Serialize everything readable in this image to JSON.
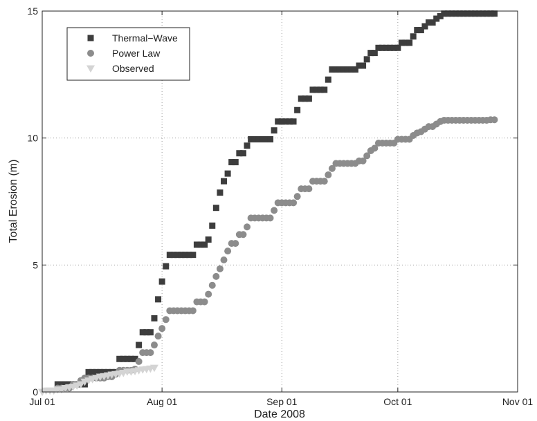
{
  "chart_data": {
    "type": "scatter",
    "xlabel": "Date 2008",
    "ylabel": "Total Erosion (m)",
    "x_start": "2008-07-01",
    "x_end": "2008-11-01",
    "ylim": [
      0,
      15
    ],
    "x_ticks": [
      {
        "date": "2008-07-01",
        "label": "Jul 01"
      },
      {
        "date": "2008-08-01",
        "label": "Aug 01"
      },
      {
        "date": "2008-09-01",
        "label": "Sep 01"
      },
      {
        "date": "2008-10-01",
        "label": "Oct 01"
      },
      {
        "date": "2008-11-01",
        "label": "Nov 01"
      }
    ],
    "y_ticks": [
      0,
      5,
      10,
      15
    ],
    "grid": true,
    "legend_position": "top-left",
    "series": [
      {
        "name": "Thermal−Wave",
        "marker": "square",
        "color": "#3d3d3d",
        "points": [
          [
            "2008-07-05",
            0.3
          ],
          [
            "2008-07-06",
            0.3
          ],
          [
            "2008-07-07",
            0.3
          ],
          [
            "2008-07-08",
            0.3
          ],
          [
            "2008-07-09",
            0.3
          ],
          [
            "2008-07-10",
            0.3
          ],
          [
            "2008-07-11",
            0.3
          ],
          [
            "2008-07-12",
            0.3
          ],
          [
            "2008-07-13",
            0.78
          ],
          [
            "2008-07-14",
            0.78
          ],
          [
            "2008-07-15",
            0.78
          ],
          [
            "2008-07-16",
            0.78
          ],
          [
            "2008-07-17",
            0.78
          ],
          [
            "2008-07-18",
            0.78
          ],
          [
            "2008-07-19",
            0.78
          ],
          [
            "2008-07-20",
            0.78
          ],
          [
            "2008-07-21",
            1.3
          ],
          [
            "2008-07-22",
            1.3
          ],
          [
            "2008-07-23",
            1.3
          ],
          [
            "2008-07-24",
            1.3
          ],
          [
            "2008-07-25",
            1.3
          ],
          [
            "2008-07-26",
            1.85
          ],
          [
            "2008-07-27",
            2.35
          ],
          [
            "2008-07-28",
            2.35
          ],
          [
            "2008-07-29",
            2.35
          ],
          [
            "2008-07-30",
            2.9
          ],
          [
            "2008-07-31",
            3.65
          ],
          [
            "2008-08-01",
            4.35
          ],
          [
            "2008-08-02",
            4.95
          ],
          [
            "2008-08-03",
            5.4
          ],
          [
            "2008-08-04",
            5.4
          ],
          [
            "2008-08-05",
            5.4
          ],
          [
            "2008-08-06",
            5.4
          ],
          [
            "2008-08-07",
            5.4
          ],
          [
            "2008-08-08",
            5.4
          ],
          [
            "2008-08-09",
            5.4
          ],
          [
            "2008-08-10",
            5.8
          ],
          [
            "2008-08-11",
            5.8
          ],
          [
            "2008-08-12",
            5.8
          ],
          [
            "2008-08-13",
            6.0
          ],
          [
            "2008-08-14",
            6.55
          ],
          [
            "2008-08-15",
            7.25
          ],
          [
            "2008-08-16",
            7.85
          ],
          [
            "2008-08-17",
            8.3
          ],
          [
            "2008-08-18",
            8.6
          ],
          [
            "2008-08-19",
            9.05
          ],
          [
            "2008-08-20",
            9.05
          ],
          [
            "2008-08-21",
            9.4
          ],
          [
            "2008-08-22",
            9.4
          ],
          [
            "2008-08-23",
            9.7
          ],
          [
            "2008-08-24",
            9.95
          ],
          [
            "2008-08-25",
            9.95
          ],
          [
            "2008-08-26",
            9.95
          ],
          [
            "2008-08-27",
            9.95
          ],
          [
            "2008-08-28",
            9.95
          ],
          [
            "2008-08-29",
            9.95
          ],
          [
            "2008-08-30",
            10.3
          ],
          [
            "2008-08-31",
            10.65
          ],
          [
            "2008-09-01",
            10.65
          ],
          [
            "2008-09-02",
            10.65
          ],
          [
            "2008-09-03",
            10.65
          ],
          [
            "2008-09-04",
            10.65
          ],
          [
            "2008-09-05",
            11.1
          ],
          [
            "2008-09-06",
            11.55
          ],
          [
            "2008-09-07",
            11.55
          ],
          [
            "2008-09-08",
            11.55
          ],
          [
            "2008-09-09",
            11.9
          ],
          [
            "2008-09-10",
            11.9
          ],
          [
            "2008-09-11",
            11.9
          ],
          [
            "2008-09-12",
            11.9
          ],
          [
            "2008-09-13",
            12.3
          ],
          [
            "2008-09-14",
            12.7
          ],
          [
            "2008-09-15",
            12.7
          ],
          [
            "2008-09-16",
            12.7
          ],
          [
            "2008-09-17",
            12.7
          ],
          [
            "2008-09-18",
            12.7
          ],
          [
            "2008-09-19",
            12.7
          ],
          [
            "2008-09-20",
            12.7
          ],
          [
            "2008-09-21",
            12.85
          ],
          [
            "2008-09-22",
            12.85
          ],
          [
            "2008-09-23",
            13.1
          ],
          [
            "2008-09-24",
            13.35
          ],
          [
            "2008-09-25",
            13.35
          ],
          [
            "2008-09-26",
            13.55
          ],
          [
            "2008-09-27",
            13.55
          ],
          [
            "2008-09-28",
            13.55
          ],
          [
            "2008-09-29",
            13.55
          ],
          [
            "2008-09-30",
            13.55
          ],
          [
            "2008-10-01",
            13.55
          ],
          [
            "2008-10-02",
            13.75
          ],
          [
            "2008-10-03",
            13.75
          ],
          [
            "2008-10-04",
            13.75
          ],
          [
            "2008-10-05",
            14.0
          ],
          [
            "2008-10-06",
            14.25
          ],
          [
            "2008-10-07",
            14.25
          ],
          [
            "2008-10-08",
            14.4
          ],
          [
            "2008-10-09",
            14.55
          ],
          [
            "2008-10-10",
            14.55
          ],
          [
            "2008-10-11",
            14.7
          ],
          [
            "2008-10-12",
            14.8
          ],
          [
            "2008-10-13",
            14.9
          ],
          [
            "2008-10-14",
            14.9
          ],
          [
            "2008-10-15",
            14.9
          ],
          [
            "2008-10-16",
            14.9
          ],
          [
            "2008-10-17",
            14.9
          ],
          [
            "2008-10-18",
            14.9
          ],
          [
            "2008-10-19",
            14.9
          ],
          [
            "2008-10-20",
            14.9
          ],
          [
            "2008-10-21",
            14.9
          ],
          [
            "2008-10-22",
            14.9
          ],
          [
            "2008-10-23",
            14.9
          ],
          [
            "2008-10-24",
            14.9
          ],
          [
            "2008-10-25",
            14.9
          ],
          [
            "2008-10-26",
            14.9
          ]
        ]
      },
      {
        "name": "Power Law",
        "marker": "circle",
        "color": "#8c8c8c",
        "points": [
          [
            "2008-07-05",
            0.15
          ],
          [
            "2008-07-06",
            0.15
          ],
          [
            "2008-07-07",
            0.15
          ],
          [
            "2008-07-08",
            0.15
          ],
          [
            "2008-07-09",
            0.3
          ],
          [
            "2008-07-10",
            0.3
          ],
          [
            "2008-07-11",
            0.45
          ],
          [
            "2008-07-12",
            0.55
          ],
          [
            "2008-07-13",
            0.55
          ],
          [
            "2008-07-14",
            0.55
          ],
          [
            "2008-07-15",
            0.55
          ],
          [
            "2008-07-16",
            0.55
          ],
          [
            "2008-07-17",
            0.55
          ],
          [
            "2008-07-18",
            0.6
          ],
          [
            "2008-07-19",
            0.6
          ],
          [
            "2008-07-20",
            0.7
          ],
          [
            "2008-07-21",
            0.85
          ],
          [
            "2008-07-22",
            0.85
          ],
          [
            "2008-07-23",
            0.85
          ],
          [
            "2008-07-24",
            0.85
          ],
          [
            "2008-07-25",
            0.9
          ],
          [
            "2008-07-26",
            1.2
          ],
          [
            "2008-07-27",
            1.55
          ],
          [
            "2008-07-28",
            1.55
          ],
          [
            "2008-07-29",
            1.55
          ],
          [
            "2008-07-30",
            1.85
          ],
          [
            "2008-07-31",
            2.2
          ],
          [
            "2008-08-01",
            2.5
          ],
          [
            "2008-08-02",
            2.85
          ],
          [
            "2008-08-03",
            3.2
          ],
          [
            "2008-08-04",
            3.2
          ],
          [
            "2008-08-05",
            3.2
          ],
          [
            "2008-08-06",
            3.2
          ],
          [
            "2008-08-07",
            3.2
          ],
          [
            "2008-08-08",
            3.2
          ],
          [
            "2008-08-09",
            3.2
          ],
          [
            "2008-08-10",
            3.55
          ],
          [
            "2008-08-11",
            3.55
          ],
          [
            "2008-08-12",
            3.55
          ],
          [
            "2008-08-13",
            3.85
          ],
          [
            "2008-08-14",
            4.2
          ],
          [
            "2008-08-15",
            4.55
          ],
          [
            "2008-08-16",
            4.85
          ],
          [
            "2008-08-17",
            5.2
          ],
          [
            "2008-08-18",
            5.55
          ],
          [
            "2008-08-19",
            5.85
          ],
          [
            "2008-08-20",
            5.85
          ],
          [
            "2008-08-21",
            6.2
          ],
          [
            "2008-08-22",
            6.2
          ],
          [
            "2008-08-23",
            6.5
          ],
          [
            "2008-08-24",
            6.85
          ],
          [
            "2008-08-25",
            6.85
          ],
          [
            "2008-08-26",
            6.85
          ],
          [
            "2008-08-27",
            6.85
          ],
          [
            "2008-08-28",
            6.85
          ],
          [
            "2008-08-29",
            6.85
          ],
          [
            "2008-08-30",
            7.15
          ],
          [
            "2008-08-31",
            7.45
          ],
          [
            "2008-09-01",
            7.45
          ],
          [
            "2008-09-02",
            7.45
          ],
          [
            "2008-09-03",
            7.45
          ],
          [
            "2008-09-04",
            7.45
          ],
          [
            "2008-09-05",
            7.7
          ],
          [
            "2008-09-06",
            8.0
          ],
          [
            "2008-09-07",
            8.0
          ],
          [
            "2008-09-08",
            8.0
          ],
          [
            "2008-09-09",
            8.3
          ],
          [
            "2008-09-10",
            8.3
          ],
          [
            "2008-09-11",
            8.3
          ],
          [
            "2008-09-12",
            8.3
          ],
          [
            "2008-09-13",
            8.55
          ],
          [
            "2008-09-14",
            8.8
          ],
          [
            "2008-09-15",
            9.0
          ],
          [
            "2008-09-16",
            9.0
          ],
          [
            "2008-09-17",
            9.0
          ],
          [
            "2008-09-18",
            9.0
          ],
          [
            "2008-09-19",
            9.0
          ],
          [
            "2008-09-20",
            9.0
          ],
          [
            "2008-09-21",
            9.1
          ],
          [
            "2008-09-22",
            9.1
          ],
          [
            "2008-09-23",
            9.3
          ],
          [
            "2008-09-24",
            9.5
          ],
          [
            "2008-09-25",
            9.6
          ],
          [
            "2008-09-26",
            9.8
          ],
          [
            "2008-09-27",
            9.8
          ],
          [
            "2008-09-28",
            9.8
          ],
          [
            "2008-09-29",
            9.8
          ],
          [
            "2008-09-30",
            9.8
          ],
          [
            "2008-10-01",
            9.95
          ],
          [
            "2008-10-02",
            9.95
          ],
          [
            "2008-10-03",
            9.95
          ],
          [
            "2008-10-04",
            9.95
          ],
          [
            "2008-10-05",
            10.1
          ],
          [
            "2008-10-06",
            10.2
          ],
          [
            "2008-10-07",
            10.25
          ],
          [
            "2008-10-08",
            10.35
          ],
          [
            "2008-10-09",
            10.45
          ],
          [
            "2008-10-10",
            10.45
          ],
          [
            "2008-10-11",
            10.55
          ],
          [
            "2008-10-12",
            10.65
          ],
          [
            "2008-10-13",
            10.7
          ],
          [
            "2008-10-14",
            10.7
          ],
          [
            "2008-10-15",
            10.7
          ],
          [
            "2008-10-16",
            10.7
          ],
          [
            "2008-10-17",
            10.7
          ],
          [
            "2008-10-18",
            10.7
          ],
          [
            "2008-10-19",
            10.7
          ],
          [
            "2008-10-20",
            10.7
          ],
          [
            "2008-10-21",
            10.7
          ],
          [
            "2008-10-22",
            10.7
          ],
          [
            "2008-10-23",
            10.7
          ],
          [
            "2008-10-24",
            10.7
          ],
          [
            "2008-10-25",
            10.72
          ],
          [
            "2008-10-26",
            10.72
          ]
        ]
      },
      {
        "name": "Observed",
        "marker": "triangle-down",
        "color": "#d4d4d4",
        "points": [
          [
            "2008-07-01",
            0.0
          ],
          [
            "2008-07-02",
            0.05
          ],
          [
            "2008-07-03",
            0.05
          ],
          [
            "2008-07-04",
            0.05
          ],
          [
            "2008-07-05",
            0.1
          ],
          [
            "2008-07-06",
            0.1
          ],
          [
            "2008-07-07",
            0.15
          ],
          [
            "2008-07-08",
            0.18
          ],
          [
            "2008-07-09",
            0.2
          ],
          [
            "2008-07-10",
            0.25
          ],
          [
            "2008-07-11",
            0.3
          ],
          [
            "2008-07-12",
            0.4
          ],
          [
            "2008-07-13",
            0.45
          ],
          [
            "2008-07-14",
            0.5
          ],
          [
            "2008-07-15",
            0.55
          ],
          [
            "2008-07-16",
            0.6
          ],
          [
            "2008-07-17",
            0.62
          ],
          [
            "2008-07-18",
            0.65
          ],
          [
            "2008-07-19",
            0.68
          ],
          [
            "2008-07-20",
            0.7
          ],
          [
            "2008-07-21",
            0.72
          ],
          [
            "2008-07-22",
            0.75
          ],
          [
            "2008-07-23",
            0.8
          ],
          [
            "2008-07-24",
            0.8
          ],
          [
            "2008-07-25",
            0.82
          ],
          [
            "2008-07-26",
            0.85
          ],
          [
            "2008-07-27",
            0.88
          ],
          [
            "2008-07-28",
            0.9
          ],
          [
            "2008-07-29",
            0.92
          ],
          [
            "2008-07-30",
            0.95
          ]
        ]
      }
    ]
  }
}
